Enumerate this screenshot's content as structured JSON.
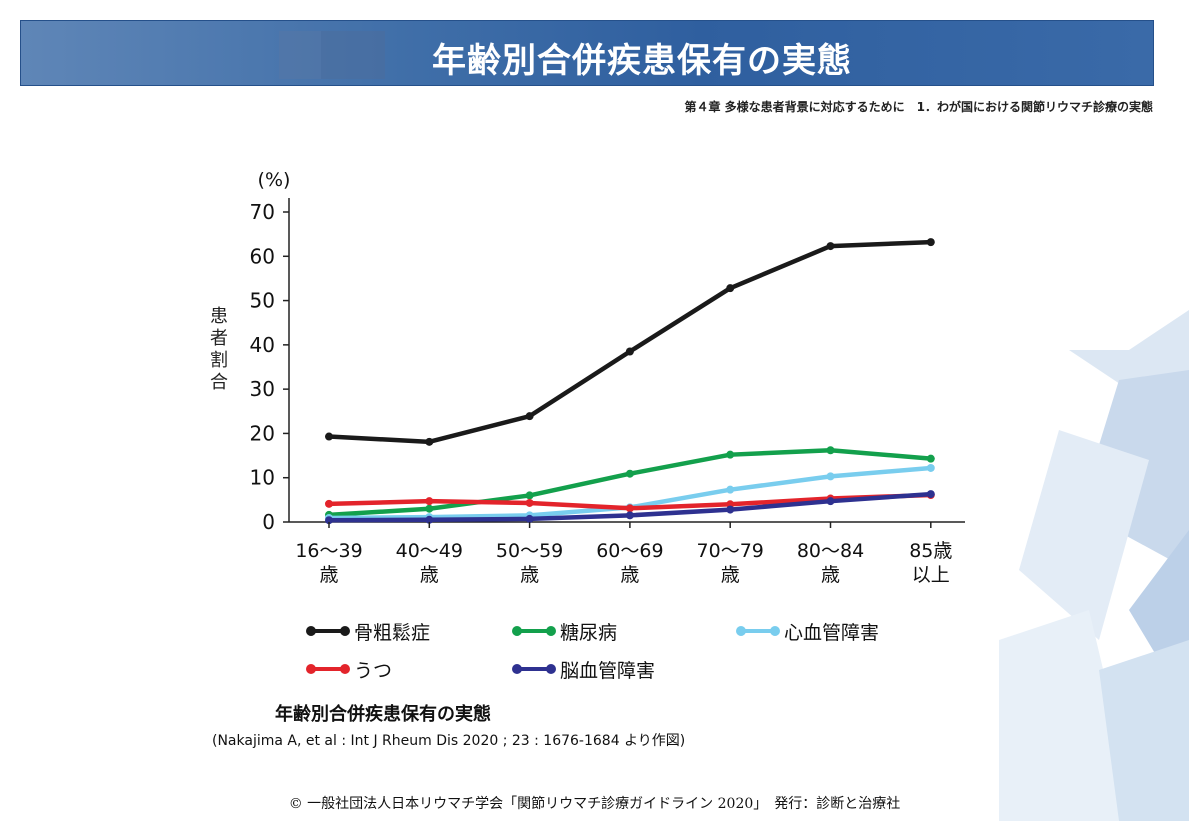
{
  "header": {
    "title": "年齢別合併疾患保有の実態"
  },
  "breadcrumb": "第４章 多様な患者背景に対応するために　1．わが国における関節リウマチ診療の実態",
  "chart_data": {
    "type": "line",
    "categories": [
      "16〜39\n歳",
      "40〜49\n歳",
      "50〜59\n歳",
      "60〜69\n歳",
      "70〜79\n歳",
      "80〜84\n歳",
      "85歳\n以上"
    ],
    "ylabel": "患者割合",
    "yunit": "(%)",
    "ylim": [
      0,
      70
    ],
    "yticks": [
      0,
      10,
      20,
      30,
      40,
      50,
      60,
      70
    ],
    "grid": false,
    "legend_position": "bottom",
    "series": [
      {
        "name": "骨粗鬆症",
        "color": "#1a1a1a",
        "values": [
          19.3,
          18.1,
          23.9,
          38.5,
          52.8,
          62.3,
          63.2
        ]
      },
      {
        "name": "糖尿病",
        "color": "#13a04c",
        "values": [
          1.6,
          3.0,
          6.0,
          10.9,
          15.2,
          16.2,
          14.3
        ]
      },
      {
        "name": "心血管障害",
        "color": "#79cdee",
        "values": [
          0.9,
          1.1,
          1.5,
          3.3,
          7.3,
          10.3,
          12.2
        ]
      },
      {
        "name": "うつ",
        "color": "#e3242b",
        "values": [
          4.1,
          4.7,
          4.3,
          3.1,
          4.0,
          5.3,
          6.1
        ]
      },
      {
        "name": "脳血管障害",
        "color": "#2e3190",
        "values": [
          0.4,
          0.5,
          0.7,
          1.5,
          2.8,
          4.7,
          6.3
        ]
      }
    ]
  },
  "caption": {
    "title": "年齢別合併疾患保有の実態",
    "source": "(Nakajima A, et al : Int J Rheum Dis 2020 ; 23 : 1676-1684 より作図)"
  },
  "footer": "© 一般社団法人日本リウマチ学会「関節リウマチ診療ガイドライン 2020」　発行：診断と治療社"
}
